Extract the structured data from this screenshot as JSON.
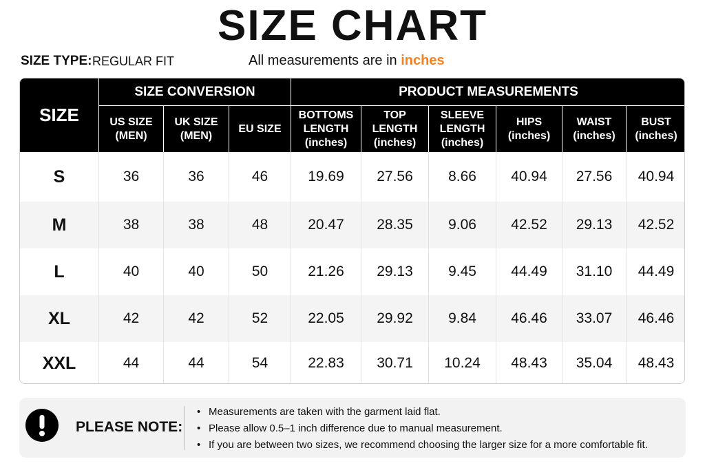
{
  "title": "SIZE CHART",
  "size_type": {
    "label": "SIZE TYPE:",
    "value": "REGULAR FIT"
  },
  "units_note": {
    "text": "All measurements are in",
    "unit": "inches"
  },
  "table": {
    "size_header": "SIZE",
    "groups": [
      "SIZE CONVERSION",
      "PRODUCT MEASUREMENTS"
    ],
    "columns": [
      [
        "US SIZE",
        "(MEN)"
      ],
      [
        "UK SIZE",
        "(MEN)"
      ],
      [
        "EU SIZE"
      ],
      [
        "BOTTOMS",
        "LENGTH",
        "(inches)"
      ],
      [
        "TOP",
        "LENGTH",
        "(inches)"
      ],
      [
        "SLEEVE",
        "LENGTH",
        "(inches)"
      ],
      [
        "HIPS",
        "(inches)"
      ],
      [
        "WAIST",
        "(inches)"
      ],
      [
        "BUST",
        "(inches)"
      ]
    ],
    "rows": [
      [
        "S",
        "36",
        "36",
        "46",
        "19.69",
        "27.56",
        "8.66",
        "40.94",
        "27.56",
        "40.94"
      ],
      [
        "M",
        "38",
        "38",
        "48",
        "20.47",
        "28.35",
        "9.06",
        "42.52",
        "29.13",
        "42.52"
      ],
      [
        "L",
        "40",
        "40",
        "50",
        "21.26",
        "29.13",
        "9.45",
        "44.49",
        "31.10",
        "44.49"
      ],
      [
        "XL",
        "42",
        "42",
        "52",
        "22.05",
        "29.92",
        "9.84",
        "46.46",
        "33.07",
        "46.46"
      ],
      [
        "XXL",
        "44",
        "44",
        "54",
        "22.83",
        "30.71",
        "10.24",
        "48.43",
        "35.04",
        "48.43"
      ]
    ]
  },
  "note": {
    "label": "PLEASE NOTE:",
    "items": [
      "Measurements are taken with the garment laid flat.",
      "Please allow 0.5–1 inch difference due to manual measurement.",
      "If you are between two sizes, we recommend choosing the larger size for a more comfortable fit."
    ]
  }
}
